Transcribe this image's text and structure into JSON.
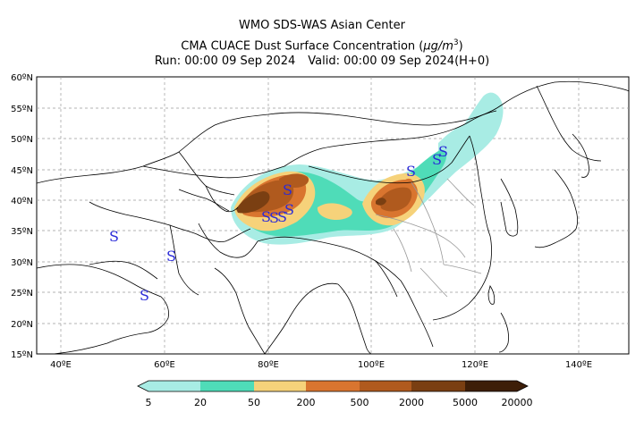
{
  "titles": {
    "line1": "WMO SDS-WAS Asian Center",
    "line2_prefix": "CMA CUACE Dust Surface Concentration (",
    "line2_unit": "μg/m",
    "line2_sup": "3",
    "line2_suffix": ")",
    "run": "Run: 00:00 09 Sep 2024",
    "valid": "Valid: 00:00 09 Sep 2024(H+0)"
  },
  "map": {
    "lat_labels": [
      "60ºN",
      "55ºN",
      "50ºN",
      "45ºN",
      "40ºN",
      "35ºN",
      "30ºN",
      "25ºN",
      "20ºN",
      "15ºN"
    ],
    "lon_labels": [
      "40ºE",
      "60ºE",
      "80ºE",
      "100ºE",
      "120ºE",
      "140ºE"
    ],
    "dust_storm_symbol": "S"
  },
  "colorbar": {
    "levels": [
      "5",
      "20",
      "50",
      "200",
      "500",
      "2000",
      "5000",
      "20000"
    ],
    "colors": [
      "#a8ece4",
      "#4fdcb8",
      "#f6d27a",
      "#d9752f",
      "#b05a1e",
      "#7a3f12",
      "#3d1e08"
    ]
  }
}
